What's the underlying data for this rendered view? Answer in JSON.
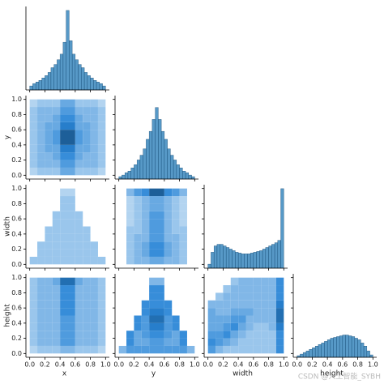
{
  "chart_data": {
    "type": "pairplot",
    "variables": [
      "x",
      "y",
      "width",
      "height"
    ],
    "lim": [
      -0.05,
      1.05
    ],
    "ticks": [
      {
        "value": 0,
        "label": "0.0"
      },
      {
        "value": 0.2,
        "label": "0.2"
      },
      {
        "value": 0.4,
        "label": "0.4"
      },
      {
        "value": 0.6,
        "label": "0.6"
      },
      {
        "value": 0.8,
        "label": "0.8"
      },
      {
        "value": 1,
        "label": "1.0"
      }
    ],
    "color": "#1f77b4",
    "bins": [
      0,
      0.04,
      0.08,
      0.12,
      0.16,
      0.2,
      0.24,
      0.28,
      0.32,
      0.36,
      0.4,
      0.44,
      0.48,
      0.52,
      0.56,
      0.6,
      0.64,
      0.68,
      0.72,
      0.76,
      0.8,
      0.84,
      0.88,
      0.92,
      0.96,
      1
    ],
    "count_lim": [
      0,
      105
    ],
    "extent": [
      0,
      1
    ],
    "zlim": [
      0,
      10
    ],
    "diagonal": [
      {
        "type": "histogram",
        "var": 0,
        "counts": [
          5,
          8,
          10,
          12,
          15,
          18,
          22,
          28,
          32,
          38,
          45,
          60,
          100,
          62,
          45,
          38,
          32,
          28,
          22,
          18,
          15,
          12,
          10,
          8,
          5
        ]
      },
      {
        "type": "histogram",
        "var": 1,
        "counts": [
          3,
          5,
          8,
          10,
          14,
          18,
          24,
          30,
          38,
          50,
          60,
          75,
          90,
          75,
          60,
          50,
          38,
          30,
          24,
          18,
          14,
          10,
          8,
          5,
          3
        ]
      },
      {
        "type": "histogram",
        "var": 2,
        "counts": [
          5,
          20,
          28,
          30,
          30,
          28,
          26,
          24,
          22,
          20,
          19,
          18,
          18,
          18,
          19,
          20,
          21,
          22,
          24,
          26,
          28,
          30,
          32,
          35,
          100
        ]
      },
      {
        "type": "histogram",
        "var": 3,
        "counts": [
          2,
          4,
          6,
          8,
          10,
          12,
          14,
          16,
          18,
          20,
          22,
          24,
          25,
          26,
          27,
          28,
          28,
          27,
          26,
          24,
          22,
          18,
          14,
          8,
          3
        ]
      }
    ],
    "offdiag": [
      {
        "type": "heatmap",
        "x": 0,
        "y": 1,
        "z": [
          [
            1,
            2,
            2,
            2,
            4,
            4,
            2,
            2,
            2,
            1
          ],
          [
            2,
            3,
            3,
            3,
            5,
            5,
            3,
            3,
            3,
            2
          ],
          [
            2,
            3,
            3,
            4,
            6,
            6,
            4,
            3,
            3,
            2
          ],
          [
            2,
            3,
            4,
            4,
            7,
            7,
            4,
            4,
            3,
            2
          ],
          [
            2,
            3,
            4,
            5,
            9,
            9,
            5,
            4,
            3,
            2
          ],
          [
            2,
            3,
            4,
            5,
            9,
            9,
            5,
            4,
            3,
            2
          ],
          [
            2,
            3,
            4,
            4,
            7,
            7,
            4,
            4,
            3,
            2
          ],
          [
            2,
            3,
            3,
            4,
            6,
            6,
            4,
            3,
            3,
            2
          ],
          [
            2,
            3,
            3,
            3,
            5,
            5,
            3,
            3,
            3,
            2
          ],
          [
            1,
            2,
            2,
            2,
            4,
            4,
            2,
            2,
            2,
            1
          ]
        ]
      },
      {
        "type": "heatmap",
        "x": 0,
        "y": 2,
        "z": [
          [
            2,
            2,
            2,
            2,
            2,
            2,
            2,
            2,
            2,
            2
          ],
          [
            0,
            2,
            2,
            2,
            2,
            2,
            2,
            2,
            2,
            0
          ],
          [
            0,
            2,
            2,
            2,
            2,
            2,
            2,
            2,
            2,
            0
          ],
          [
            0,
            0,
            2,
            2,
            2,
            2,
            2,
            2,
            0,
            0
          ],
          [
            0,
            0,
            2,
            2,
            2,
            2,
            2,
            2,
            0,
            0
          ],
          [
            0,
            0,
            0,
            2,
            2,
            2,
            2,
            0,
            0,
            0
          ],
          [
            0,
            0,
            0,
            2,
            2,
            2,
            2,
            0,
            0,
            0
          ],
          [
            0,
            0,
            0,
            0,
            2,
            2,
            0,
            0,
            0,
            0
          ],
          [
            0,
            0,
            0,
            0,
            2,
            2,
            0,
            0,
            0,
            0
          ],
          [
            0,
            0,
            0,
            0,
            1,
            1,
            0,
            0,
            0,
            0
          ]
        ]
      },
      {
        "type": "heatmap",
        "x": 1,
        "y": 2,
        "z": [
          [
            0,
            2,
            3,
            3,
            4,
            4,
            3,
            3,
            2,
            0
          ],
          [
            0,
            2,
            3,
            4,
            6,
            6,
            4,
            3,
            2,
            0
          ],
          [
            0,
            2,
            3,
            4,
            6,
            6,
            4,
            3,
            2,
            0
          ],
          [
            0,
            2,
            3,
            3,
            5,
            5,
            3,
            3,
            2,
            0
          ],
          [
            0,
            2,
            2,
            3,
            5,
            5,
            3,
            2,
            2,
            0
          ],
          [
            0,
            1,
            2,
            3,
            5,
            5,
            3,
            2,
            1,
            0
          ],
          [
            0,
            1,
            2,
            3,
            5,
            5,
            3,
            2,
            1,
            0
          ],
          [
            0,
            1,
            2,
            3,
            4,
            4,
            3,
            2,
            1,
            0
          ],
          [
            0,
            1,
            2,
            3,
            4,
            4,
            3,
            2,
            1,
            0
          ],
          [
            0,
            3,
            5,
            6,
            9,
            9,
            6,
            5,
            3,
            0
          ]
        ]
      },
      {
        "type": "heatmap",
        "x": 0,
        "y": 3,
        "z": [
          [
            1,
            2,
            2,
            2,
            3,
            3,
            2,
            2,
            2,
            1
          ],
          [
            2,
            3,
            3,
            3,
            5,
            5,
            3,
            3,
            3,
            2
          ],
          [
            2,
            3,
            3,
            3,
            5,
            5,
            3,
            3,
            3,
            2
          ],
          [
            2,
            3,
            3,
            3,
            5,
            5,
            3,
            3,
            3,
            2
          ],
          [
            2,
            3,
            3,
            3,
            5,
            5,
            3,
            3,
            3,
            2
          ],
          [
            2,
            3,
            3,
            3,
            6,
            6,
            3,
            3,
            3,
            2
          ],
          [
            2,
            3,
            3,
            3,
            6,
            6,
            3,
            3,
            3,
            2
          ],
          [
            2,
            3,
            3,
            3,
            6,
            6,
            3,
            3,
            3,
            2
          ],
          [
            2,
            3,
            3,
            3,
            6,
            6,
            3,
            3,
            3,
            2
          ],
          [
            2,
            3,
            3,
            4,
            8,
            8,
            4,
            3,
            3,
            2
          ]
        ]
      },
      {
        "type": "heatmap",
        "x": 1,
        "y": 3,
        "z": [
          [
            3,
            5,
            5,
            5,
            5,
            5,
            5,
            5,
            5,
            3
          ],
          [
            0,
            6,
            4,
            4,
            5,
            5,
            4,
            4,
            6,
            0
          ],
          [
            0,
            6,
            4,
            5,
            6,
            6,
            5,
            4,
            6,
            0
          ],
          [
            0,
            0,
            6,
            5,
            7,
            7,
            5,
            6,
            0,
            0
          ],
          [
            0,
            0,
            6,
            5,
            8,
            8,
            5,
            6,
            0,
            0
          ],
          [
            0,
            0,
            0,
            6,
            7,
            7,
            6,
            0,
            0,
            0
          ],
          [
            0,
            0,
            0,
            6,
            6,
            6,
            6,
            0,
            0,
            0
          ],
          [
            0,
            0,
            0,
            0,
            6,
            6,
            0,
            0,
            0,
            0
          ],
          [
            0,
            0,
            0,
            0,
            6,
            6,
            0,
            0,
            0,
            0
          ],
          [
            0,
            0,
            0,
            0,
            3,
            3,
            0,
            0,
            0,
            0
          ]
        ]
      },
      {
        "type": "heatmap",
        "x": 2,
        "y": 3,
        "z": [
          [
            5,
            3,
            2,
            2,
            2,
            2,
            2,
            2,
            2,
            6
          ],
          [
            6,
            5,
            4,
            3,
            2,
            2,
            2,
            2,
            2,
            6
          ],
          [
            5,
            5,
            6,
            4,
            3,
            2,
            2,
            2,
            2,
            6
          ],
          [
            4,
            4,
            5,
            6,
            4,
            3,
            2,
            2,
            3,
            7
          ],
          [
            4,
            4,
            4,
            5,
            5,
            3,
            3,
            3,
            3,
            8
          ],
          [
            4,
            3,
            3,
            4,
            4,
            4,
            3,
            3,
            3,
            8
          ],
          [
            3,
            3,
            3,
            3,
            3,
            3,
            3,
            3,
            3,
            7
          ],
          [
            0,
            2,
            3,
            3,
            3,
            3,
            3,
            3,
            3,
            6
          ],
          [
            0,
            0,
            2,
            3,
            3,
            3,
            3,
            3,
            3,
            6
          ],
          [
            0,
            0,
            0,
            2,
            3,
            3,
            3,
            3,
            3,
            6
          ]
        ]
      }
    ],
    "watermark": "CSDN @人工智能_SYBH"
  }
}
